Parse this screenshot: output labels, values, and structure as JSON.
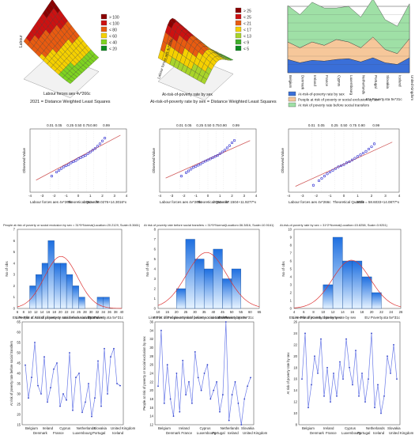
{
  "panels": {
    "surface1": {
      "xlabel": "Labour forces aes 4v*266c",
      "ylabel": "Labour",
      "caption": "2021 = Distance Weighted Least Squares",
      "legend": [
        "> 100",
        "< 100",
        "< 80",
        "< 60",
        "< 40",
        "< 20"
      ],
      "legend_colors": [
        "#8b0000",
        "#cc1111",
        "#e85b10",
        "#f5d000",
        "#7ed321",
        "#0b8a1f"
      ]
    },
    "surface2": {
      "xlabel": "At-risk-of-poverty rate by sex",
      "ylabel": "Labour forces aes 4v*266c",
      "caption": "At-risk-of-poverty rate by sex = Distance Weighted Least Squares",
      "legend": [
        "> 25",
        "< 25",
        "< 21",
        "< 17",
        "< 13",
        "< 9",
        "< 5"
      ],
      "legend_colors": [
        "#8b0000",
        "#cc1111",
        "#e85b10",
        "#f5d000",
        "#a8d42a",
        "#3fae2a",
        "#0b8a1f"
      ]
    },
    "area": {
      "categories": [
        "Belgium",
        "Denmark",
        "Ireland",
        "France",
        "Cyprus",
        "Luxembourg",
        "Netherlands",
        "Portugal",
        "Slovakia",
        "Iceland",
        "United Kingdom"
      ],
      "legend": [
        "At-risk-of-poverty rate by sex",
        "People at risk of poverty or social exclusion by sex",
        "At risk of poverty rate before social transfers"
      ],
      "legend_colors": [
        "#3a6fd8",
        "#f6c79a",
        "#9fe0a6"
      ],
      "note": "EU Poverty.sta 5v*31c"
    },
    "qq": [
      {
        "top_ticks": [
          "0.01",
          "0.05",
          "0.25",
          "0.50",
          "0.75",
          "0.90",
          "0.99"
        ],
        "xticks": [
          "-4",
          "-3",
          "-2",
          "-1",
          "0",
          "1",
          "2",
          "3",
          "4"
        ],
        "ylabel": "Observed Value",
        "xlabel_left": "Labour forces aes 4v*266c",
        "xlabel_mid": "Theoretical Quantile",
        "xlabel_right": "1960 = 70.0276+14.3016*x"
      },
      {
        "top_ticks": [
          "0.01",
          "0.05",
          "0.25",
          "0.50",
          "0.75",
          "0.90",
          "0.99"
        ],
        "xticks": [
          "-4",
          "-3",
          "-2",
          "-1",
          "0",
          "1",
          "2",
          "3",
          "4"
        ],
        "ylabel": "Observed Value",
        "xlabel_left": "Labour forces aes 4v*266c",
        "xlabel_mid": "Theoretical Quantile",
        "xlabel_right": "2000 = 67.1504+11.9277*x"
      },
      {
        "top_ticks": [
          "0.01",
          "0.05",
          "0.25",
          "0.50",
          "0.75",
          "0.90",
          "0.99"
        ],
        "xticks": [
          "-4",
          "-3",
          "-2",
          "-1",
          "0",
          "1",
          "2",
          "3",
          "4"
        ],
        "ylabel": "Observed Value",
        "xlabel_left": "Labour forces aes 4v*266c",
        "xlabel_mid": "Theoretical Quantile",
        "xlabel_right": "2021 = 58.6033+14.0877*x"
      }
    ],
    "hist": [
      {
        "title": "People at risk of poverty or social exclusion by sex = 31*5*Normal(Location=20.2129, Scale=5.3661)",
        "xticks": [
          "6",
          "8",
          "10",
          "12",
          "14",
          "16",
          "18",
          "20",
          "22",
          "24",
          "26",
          "28",
          "30",
          "32",
          "34",
          "36",
          "38",
          "40"
        ],
        "xlabel": "EU   People at risk of poverty or social exclusion by sex",
        "ylabel": "No of obs",
        "yticks": [
          "0",
          "1",
          "2",
          "3",
          "4",
          "5",
          "6",
          "7"
        ]
      },
      {
        "title": "At risk of poverty rate before social transfers = 31*5*Normal(Location=36.3816, Scale=10.9161)",
        "xticks": [
          "10",
          "15",
          "20",
          "25",
          "30",
          "35",
          "40",
          "45",
          "50",
          "55",
          "60",
          "65"
        ],
        "xlabel": "EU   At risk of poverty rate before social transfers",
        "ylabel": "No of obs",
        "yticks": [
          "0",
          "1",
          "2",
          "3",
          "4",
          "5",
          "6",
          "7",
          "8"
        ]
      },
      {
        "title": "At-risk-of-poverty rate by sex = 31*2*Normal(Location=15.8258, Scale=3.9251)",
        "xticks": [
          "4",
          "6",
          "8",
          "10",
          "12",
          "14",
          "16",
          "18",
          "20",
          "22",
          "24",
          "26"
        ],
        "xlabel": "EU   At-risk-of-poverty rate by sex",
        "ylabel": "No of obs",
        "yticks": [
          "0",
          "1",
          "2",
          "3",
          "4",
          "5",
          "6",
          "7",
          "8",
          "9",
          "10"
        ]
      }
    ],
    "lines": [
      {
        "title": "Line Plot of At risk of poverty rate before social transfers",
        "note": "EU Poverty.sta 5v*31c",
        "ylabel": "At risk of poverty rate before social transfers",
        "yticks": [
          "15",
          "20",
          "25",
          "30",
          "35",
          "40",
          "45",
          "50",
          "55",
          "60",
          "65"
        ],
        "xlabels_top": [
          "Belgium",
          "Ireland",
          "Cyprus",
          "Netherlands",
          "Slovakia",
          "United Kingdom"
        ],
        "xlabels_bottom": [
          "Denmark",
          "France",
          "Luxembourg",
          "Portugal",
          "Iceland"
        ]
      },
      {
        "title": "Line Plot of People at risk of poverty or social exclusion by sex",
        "note": "EU Poverty.sta 5v*31c",
        "ylabel": "People at risk of poverty or social exclusion by sex",
        "yticks": [
          "12",
          "14",
          "16",
          "18",
          "20",
          "22",
          "24",
          "26",
          "28",
          "30",
          "32",
          "34",
          "36"
        ],
        "xlabels_top": [
          "Belgium",
          "Ireland",
          "Cyprus",
          "Netherlands",
          "Slovakia"
        ],
        "xlabels_bottom": [
          "Denmark",
          "France",
          "Luxembourg",
          "Portugal",
          "Iceland",
          "United Kingdom"
        ]
      },
      {
        "title": "Line Plot of At risk of poverty rate by sex",
        "note": "EU Poverty.sta 5v*31c",
        "ylabel": "At risk of poverty rate by sex",
        "yticks": [
          "8",
          "10",
          "12",
          "14",
          "16",
          "18",
          "20",
          "22",
          "24",
          "26"
        ],
        "xlabels_top": [
          "Belgium",
          "Ireland",
          "Cyprus",
          "Netherlands",
          "Slovakia"
        ],
        "xlabels_bottom": [
          "Denmark",
          "France",
          "Luxembourg",
          "Portugal",
          "Iceland",
          "United Kingdom"
        ]
      }
    ]
  },
  "chart_data": [
    {
      "type": "area",
      "categories": [
        "Belgium",
        "Denmark",
        "Ireland",
        "France",
        "Cyprus",
        "Luxembourg",
        "Netherlands",
        "Portugal",
        "Slovakia",
        "Iceland",
        "United Kingdom"
      ],
      "series": [
        {
          "name": "At-risk-of-poverty rate by sex",
          "values": [
            16,
            12,
            15,
            14,
            16,
            17,
            13,
            18,
            12,
            10,
            18
          ]
        },
        {
          "name": "People at risk of poverty or social exclusion by sex",
          "values": [
            21,
            18,
            22,
            19,
            24,
            20,
            17,
            25,
            16,
            13,
            23
          ]
        },
        {
          "name": "At risk of poverty rate before social transfers",
          "values": [
            44,
            40,
            48,
            45,
            38,
            43,
            37,
            46,
            36,
            33,
            42
          ]
        }
      ]
    },
    {
      "type": "scatter",
      "x": [
        -2.2,
        -1.8,
        -1.6,
        -1.4,
        -1.2,
        -1.0,
        -0.8,
        -0.6,
        -0.4,
        -0.2,
        0.0,
        0.2,
        0.4,
        0.6,
        0.8,
        1.0,
        1.2,
        1.4,
        1.6,
        1.8,
        2.0,
        2.2
      ],
      "y": [
        38,
        45,
        48,
        51,
        54,
        56,
        58,
        61,
        63,
        65,
        68,
        70,
        72,
        74,
        77,
        80,
        83,
        86,
        90,
        94,
        99,
        104
      ],
      "fit": {
        "intercept": 70.0276,
        "slope": 14.3016
      }
    },
    {
      "type": "scatter",
      "x": [
        -2.2,
        -1.8,
        -1.6,
        -1.4,
        -1.2,
        -1.0,
        -0.8,
        -0.6,
        -0.4,
        -0.2,
        0.0,
        0.2,
        0.4,
        0.6,
        0.8,
        1.0,
        1.2,
        1.4,
        1.6,
        1.8,
        2.0,
        2.2
      ],
      "y": [
        38,
        44,
        47,
        50,
        53,
        55,
        57,
        59,
        62,
        64,
        66,
        68,
        70,
        72,
        74,
        77,
        80,
        83,
        87,
        91,
        96,
        100
      ],
      "fit": {
        "intercept": 67.1504,
        "slope": 11.9277
      }
    },
    {
      "type": "scatter",
      "x": [
        -2.2,
        -1.8,
        -1.6,
        -1.4,
        -1.2,
        -1.0,
        -0.8,
        -0.6,
        -0.4,
        -0.2,
        0.0,
        0.2,
        0.4,
        0.6,
        0.8,
        1.0,
        1.2,
        1.4,
        1.6,
        1.8,
        2.0,
        2.2
      ],
      "y": [
        22,
        30,
        34,
        38,
        42,
        45,
        48,
        51,
        54,
        56,
        58,
        61,
        63,
        66,
        69,
        72,
        75,
        78,
        81,
        85,
        89,
        94
      ],
      "fit": {
        "intercept": 58.6033,
        "slope": 14.0877
      }
    },
    {
      "type": "bar",
      "bins": [
        [
          10,
          12
        ],
        [
          12,
          14
        ],
        [
          14,
          16
        ],
        [
          16,
          18
        ],
        [
          18,
          20
        ],
        [
          20,
          22
        ],
        [
          22,
          24
        ],
        [
          24,
          26
        ],
        [
          26,
          28
        ],
        [
          28,
          30
        ],
        [
          30,
          32
        ],
        [
          32,
          34
        ],
        [
          34,
          36
        ]
      ],
      "values": [
        2,
        3,
        4,
        6,
        4,
        4,
        3,
        2,
        1,
        0,
        0,
        1,
        1
      ],
      "normal": {
        "location": 20.2129,
        "scale": 5.3661
      },
      "xlim": [
        6,
        40
      ],
      "ylim": [
        0,
        7
      ]
    },
    {
      "type": "bar",
      "bins": [
        [
          20,
          25
        ],
        [
          25,
          30
        ],
        [
          30,
          35
        ],
        [
          35,
          40
        ],
        [
          40,
          45
        ],
        [
          45,
          50
        ],
        [
          50,
          55
        ]
      ],
      "values": [
        2,
        7,
        5,
        4,
        6,
        3,
        4
      ],
      "normal": {
        "location": 36.3816,
        "scale": 10.9161
      },
      "xlim": [
        10,
        65
      ],
      "ylim": [
        0,
        8
      ]
    },
    {
      "type": "bar",
      "bins": [
        [
          10,
          12
        ],
        [
          12,
          14
        ],
        [
          14,
          16
        ],
        [
          16,
          18
        ],
        [
          18,
          20
        ],
        [
          20,
          22
        ]
      ],
      "values": [
        3,
        9,
        6,
        6,
        4,
        2
      ],
      "normal": {
        "location": 15.8258,
        "scale": 3.9251
      },
      "xlim": [
        4,
        26
      ],
      "ylim": [
        0,
        10
      ]
    },
    {
      "type": "line",
      "x": [
        1,
        2,
        3,
        4,
        5,
        6,
        7,
        8,
        9,
        10,
        11,
        12,
        13,
        14,
        15,
        16,
        17,
        18,
        19,
        20,
        21,
        22,
        23,
        24,
        25,
        26,
        27,
        28,
        29,
        30,
        31
      ],
      "values": [
        44,
        28,
        38,
        55,
        34,
        30,
        48,
        26,
        33,
        42,
        45,
        24,
        30,
        27,
        50,
        22,
        38,
        40,
        21,
        26,
        35,
        19,
        28,
        46,
        24,
        52,
        30,
        48,
        52,
        35,
        34
      ],
      "ylim": [
        15,
        65
      ]
    },
    {
      "type": "line",
      "x": [
        1,
        2,
        3,
        4,
        5,
        6,
        7,
        8,
        9,
        10,
        11,
        12,
        13,
        14,
        15,
        16,
        17,
        18,
        19,
        20,
        21,
        22,
        23,
        24,
        25,
        26,
        27,
        28,
        29,
        30,
        31
      ],
      "values": [
        21,
        34,
        17,
        26,
        18,
        14,
        24,
        15,
        27,
        19,
        22,
        17,
        29,
        23,
        20,
        24,
        26,
        18,
        20,
        22,
        15,
        19,
        36,
        13,
        19,
        22,
        17,
        12,
        18,
        21,
        23
      ],
      "ylim": [
        12,
        36
      ]
    },
    {
      "type": "line",
      "x": [
        1,
        2,
        3,
        4,
        5,
        6,
        7,
        8,
        9,
        10,
        11,
        12,
        13,
        14,
        15,
        16,
        17,
        18,
        19,
        20,
        21,
        22,
        23,
        24,
        25,
        26,
        27,
        28,
        29,
        30,
        31
      ],
      "values": [
        16,
        24,
        11,
        15,
        20,
        17,
        23,
        13,
        18,
        12,
        17,
        13,
        19,
        16,
        23,
        18,
        15,
        21,
        13,
        17,
        12,
        16,
        24,
        11,
        15,
        10,
        13,
        20,
        17,
        22,
        16
      ],
      "ylim": [
        8,
        26
      ]
    }
  ]
}
